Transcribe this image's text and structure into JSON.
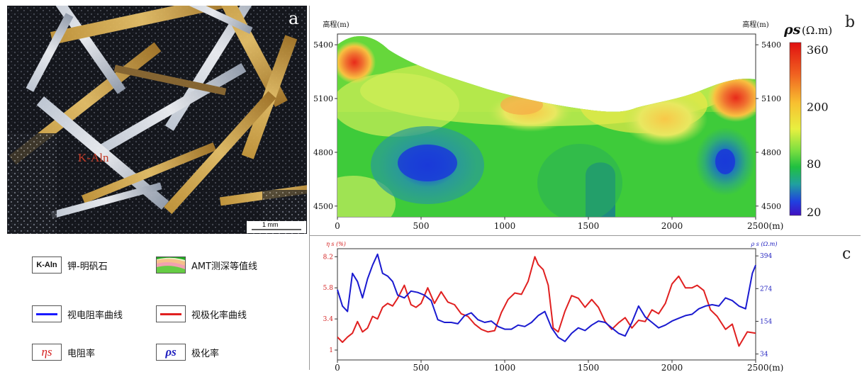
{
  "panel_a": {
    "letter": "a",
    "mineral_label": "K-Aln",
    "scale_text": "1 mm"
  },
  "legend": {
    "items": [
      {
        "symbol": "K-Aln",
        "label": "钾-明矾石"
      },
      {
        "symbol": "",
        "label": "AMT测深等值线"
      },
      {
        "symbol": "",
        "label": "视电阻率曲线",
        "color": "#1a1aff"
      },
      {
        "symbol": "",
        "label": "视极化率曲线",
        "color": "#e02020"
      },
      {
        "symbol": "ηs",
        "label": "电阻率",
        "color": "#d42020"
      },
      {
        "symbol": "ρs",
        "label": "极化率",
        "color": "#2020c0"
      }
    ]
  },
  "panel_b": {
    "letter": "b",
    "left_axis_title": "高程(m)",
    "right_axis_title": "高程(m)",
    "y_ticks": [
      "5400",
      "5100",
      "4800",
      "4500"
    ],
    "x_ticks": [
      "0",
      "500",
      "1000",
      "1500",
      "2000",
      "2500(m)"
    ],
    "colorbar_title": "ρs",
    "colorbar_unit": "(Ω.m)",
    "colorbar_ticks": [
      "360",
      "200",
      "80",
      "20"
    ]
  },
  "panel_c": {
    "letter": "c",
    "left_axis_title": "η s (%)",
    "right_axis_title": "ρ s (Ω.m)",
    "left_ticks": [
      "8.2",
      "5.8",
      "3.4",
      "1"
    ],
    "right_ticks": [
      "394",
      "274",
      "154",
      "34"
    ],
    "x_ticks": [
      "0",
      "500",
      "1000",
      "1500",
      "2000",
      "2500(m)"
    ]
  },
  "colors": {
    "red_curve": "#e02020",
    "blue_curve": "#1a1ad0",
    "rho_label": "#2020c0",
    "eta_label": "#d42020"
  },
  "chart_data": [
    {
      "type": "heatmap",
      "title": "",
      "xlabel": "",
      "ylabel": "高程(m)",
      "xlim": [
        0,
        2500
      ],
      "ylim": [
        4440,
        5460
      ],
      "x_ticks": [
        0,
        500,
        1000,
        1500,
        2000,
        2500
      ],
      "y_ticks": [
        5400,
        5100,
        4800,
        4500
      ],
      "colorbar_ticks": [
        360,
        200,
        80,
        20
      ],
      "grid": false
    },
    {
      "type": "line",
      "xlim": [
        0,
        2500
      ],
      "x_ticks": [
        0,
        500,
        1000,
        1500,
        2000,
        2500
      ],
      "left_ylim": [
        0.4,
        8.6
      ],
      "right_ylim": [
        20,
        410
      ],
      "series": [
        {
          "axis": "left",
          "color": "#e02020",
          "x": [
            0,
            30,
            60,
            90,
            120,
            150,
            180,
            210,
            240,
            270,
            300,
            330,
            360,
            400,
            440,
            470,
            500,
            540,
            580,
            620,
            660,
            700,
            740,
            780,
            820,
            860,
            900,
            940,
            980,
            1020,
            1060,
            1100,
            1140,
            1180,
            1200,
            1230,
            1260,
            1290,
            1320,
            1360,
            1400,
            1440,
            1480,
            1520,
            1560,
            1600,
            1640,
            1680,
            1720,
            1760,
            1800,
            1840,
            1880,
            1920,
            1960,
            2000,
            2040,
            2080,
            2120,
            2150,
            2190,
            2230,
            2270,
            2320,
            2360,
            2400,
            2450,
            2500
          ],
          "y": [
            2.0,
            1.6,
            2.0,
            2.3,
            3.2,
            2.4,
            2.7,
            3.6,
            3.4,
            4.3,
            4.6,
            4.4,
            5.0,
            6.0,
            4.5,
            4.3,
            4.6,
            5.8,
            4.6,
            5.5,
            4.7,
            4.5,
            3.8,
            3.6,
            3.0,
            2.6,
            2.4,
            2.5,
            3.9,
            4.9,
            5.4,
            5.3,
            6.3,
            8.2,
            7.6,
            7.2,
            6.0,
            2.7,
            2.4,
            4.0,
            5.2,
            5.0,
            4.3,
            4.9,
            4.3,
            3.2,
            2.6,
            3.1,
            3.5,
            2.7,
            3.3,
            3.2,
            4.1,
            3.8,
            4.6,
            6.1,
            6.7,
            5.8,
            5.8,
            6.0,
            5.6,
            4.1,
            3.6,
            2.6,
            3.0,
            1.3,
            2.4,
            2.3
          ]
        },
        {
          "axis": "right",
          "color": "#1a1ad0",
          "x": [
            0,
            30,
            60,
            90,
            120,
            150,
            180,
            210,
            240,
            270,
            300,
            330,
            360,
            400,
            440,
            480,
            520,
            560,
            600,
            640,
            680,
            720,
            760,
            800,
            840,
            880,
            920,
            960,
            1000,
            1040,
            1080,
            1120,
            1160,
            1200,
            1240,
            1280,
            1320,
            1360,
            1400,
            1440,
            1480,
            1520,
            1560,
            1600,
            1640,
            1680,
            1720,
            1760,
            1800,
            1840,
            1880,
            1920,
            1960,
            2000,
            2040,
            2080,
            2120,
            2160,
            2200,
            2240,
            2280,
            2320,
            2360,
            2400,
            2440,
            2480,
            2500
          ],
          "y": [
            270,
            210,
            190,
            330,
            300,
            240,
            310,
            360,
            400,
            330,
            320,
            300,
            250,
            240,
            265,
            260,
            250,
            230,
            160,
            150,
            150,
            145,
            175,
            185,
            160,
            150,
            155,
            135,
            125,
            125,
            140,
            135,
            150,
            175,
            190,
            130,
            95,
            80,
            110,
            130,
            120,
            140,
            155,
            150,
            130,
            110,
            100,
            150,
            210,
            170,
            150,
            130,
            140,
            155,
            165,
            175,
            180,
            200,
            210,
            215,
            210,
            240,
            230,
            210,
            200,
            330,
            360
          ]
        }
      ]
    }
  ]
}
